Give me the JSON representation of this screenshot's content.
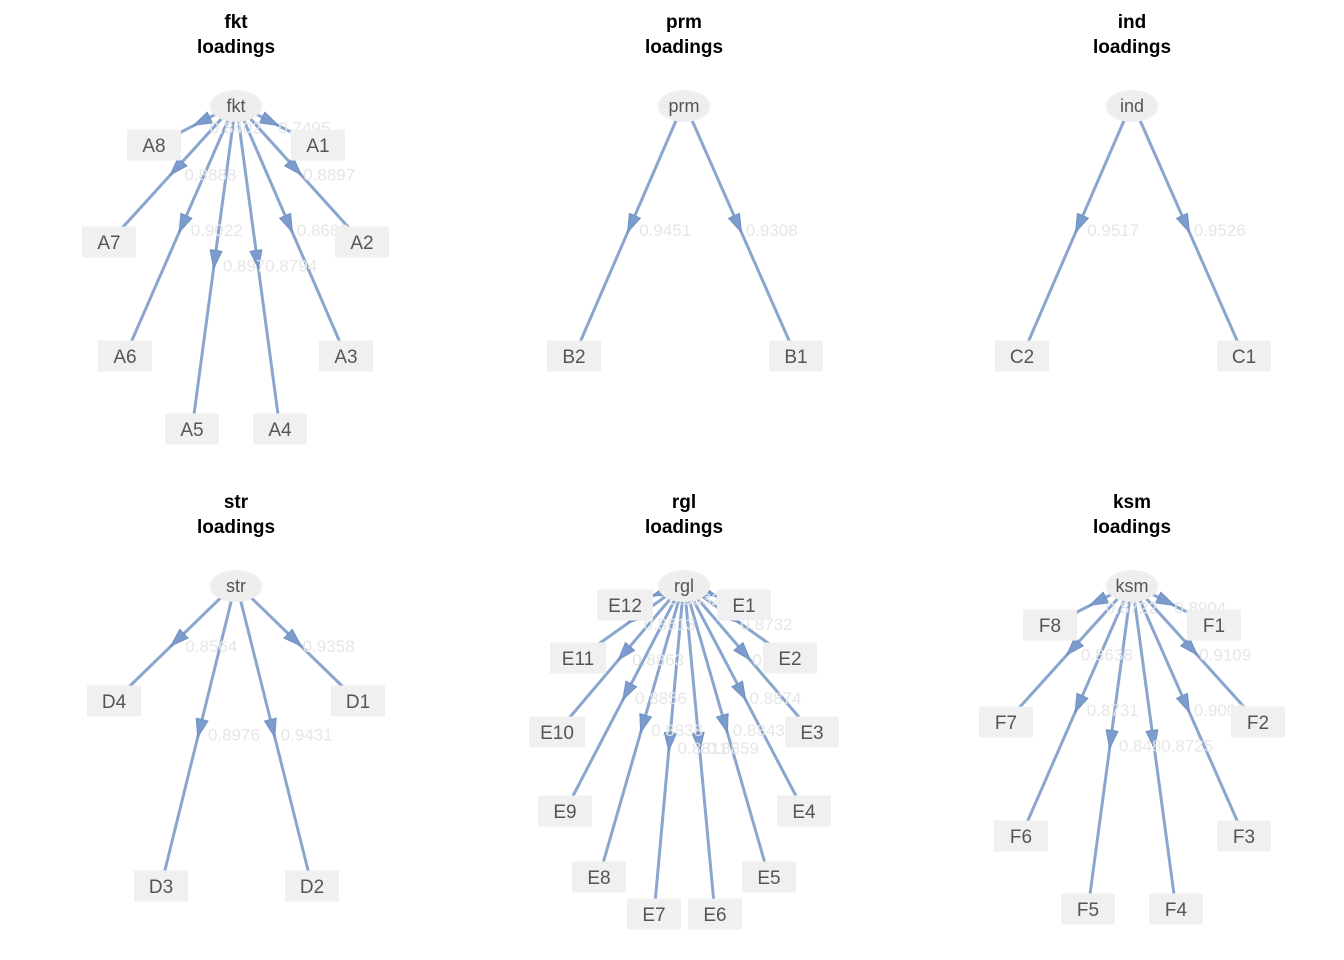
{
  "panels": [
    {
      "id": "fkt",
      "title": "fkt",
      "subtitle": "loadings",
      "latent": "fkt",
      "indicators": [
        {
          "name": "A1",
          "loading": "0.7495"
        },
        {
          "name": "A2",
          "loading": "0.8897"
        },
        {
          "name": "A3",
          "loading": "0.8686"
        },
        {
          "name": "A4",
          "loading": "0.8794"
        },
        {
          "name": "A5",
          "loading": "0.897"
        },
        {
          "name": "A6",
          "loading": "0.9022"
        },
        {
          "name": "A7",
          "loading": "0.8888"
        },
        {
          "name": "A8",
          "loading": "0.8402"
        }
      ]
    },
    {
      "id": "prm",
      "title": "prm",
      "subtitle": "loadings",
      "latent": "prm",
      "indicators": [
        {
          "name": "B1",
          "loading": "0.9308"
        },
        {
          "name": "B2",
          "loading": "0.9451"
        }
      ]
    },
    {
      "id": "ind",
      "title": "ind",
      "subtitle": "loadings",
      "latent": "ind",
      "indicators": [
        {
          "name": "C1",
          "loading": "0.9526"
        },
        {
          "name": "C2",
          "loading": "0.9517"
        }
      ]
    },
    {
      "id": "str",
      "title": "str",
      "subtitle": "loadings",
      "latent": "str",
      "indicators": [
        {
          "name": "D1",
          "loading": "0.9358"
        },
        {
          "name": "D2",
          "loading": "0.9431"
        },
        {
          "name": "D3",
          "loading": "0.8976"
        },
        {
          "name": "D4",
          "loading": "0.8564"
        }
      ]
    },
    {
      "id": "rgl",
      "title": "rgl",
      "subtitle": "loadings",
      "latent": "rgl",
      "indicators": [
        {
          "name": "E1",
          "loading": "0.875"
        },
        {
          "name": "E2",
          "loading": "0.8732"
        },
        {
          "name": "E3",
          "loading": "0.8945"
        },
        {
          "name": "E4",
          "loading": "0.8874"
        },
        {
          "name": "E5",
          "loading": "0.8843"
        },
        {
          "name": "E6",
          "loading": "0.8859"
        },
        {
          "name": "E7",
          "loading": "0.8811"
        },
        {
          "name": "E8",
          "loading": "0.8838"
        },
        {
          "name": "E9",
          "loading": "0.8856"
        },
        {
          "name": "E10",
          "loading": "0.8863"
        },
        {
          "name": "E11",
          "loading": "0.8613"
        },
        {
          "name": "E12",
          "loading": "0.8832"
        }
      ]
    },
    {
      "id": "ksm",
      "title": "ksm",
      "subtitle": "loadings",
      "latent": "ksm",
      "indicators": [
        {
          "name": "F1",
          "loading": "0.8904"
        },
        {
          "name": "F2",
          "loading": "0.9109"
        },
        {
          "name": "F3",
          "loading": "0.9003"
        },
        {
          "name": "F4",
          "loading": "0.8725"
        },
        {
          "name": "F5",
          "loading": "0.848"
        },
        {
          "name": "F6",
          "loading": "0.8731"
        },
        {
          "name": "F7",
          "loading": "0.8638"
        },
        {
          "name": "F8",
          "loading": "0.8722"
        }
      ]
    }
  ],
  "colors": {
    "edge": "#8aa6cf",
    "arrow": "#7b9ccd",
    "node_fill": "#f0f0f0",
    "loading_text": "#e6e6e6",
    "title": "#000000"
  }
}
